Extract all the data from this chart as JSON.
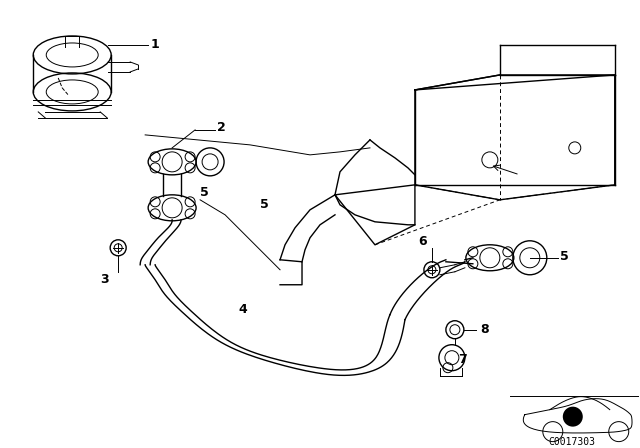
{
  "background_color": "#ffffff",
  "line_color": "#000000",
  "lw_thin": 0.7,
  "lw_med": 1.0,
  "lw_thick": 1.5,
  "label_fontsize": 9,
  "code_fontsize": 7,
  "code_text": "C0017303"
}
